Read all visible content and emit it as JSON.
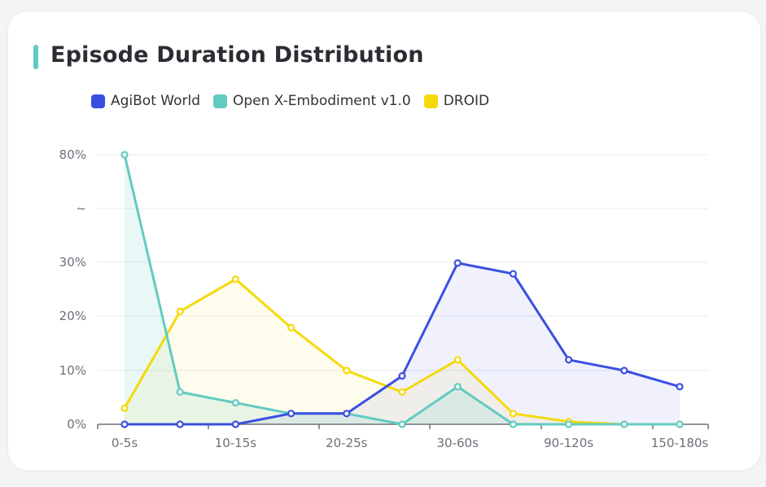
{
  "chart_data": {
    "type": "line",
    "title": "Episode Duration Distribution",
    "categories": [
      "0-5s",
      "",
      "10-15s",
      "",
      "20-25s",
      "",
      "30-60s",
      "",
      "90-120s",
      "",
      "150-180s"
    ],
    "y_tick_labels": [
      "0%",
      "10%",
      "20%",
      "30%",
      "~",
      "80%"
    ],
    "y_axis_note": "broken axis: 0–30% linear, then break (~) to 80%",
    "grid": true,
    "legend_position": "top",
    "series": [
      {
        "name": "AgiBot World",
        "color": "#3a4fe0",
        "values": [
          0,
          0,
          0,
          2,
          2,
          9,
          30,
          28,
          12,
          10,
          7
        ]
      },
      {
        "name": "Open X-Embodiment v1.0",
        "color": "#62cbbf",
        "values": [
          80,
          6,
          4,
          2,
          2,
          0,
          7,
          0,
          0,
          0,
          0
        ]
      },
      {
        "name": "DROID",
        "color": "#f5d90a",
        "values": [
          3,
          21,
          27,
          18,
          10,
          6,
          12,
          2,
          0.5,
          0,
          0
        ]
      }
    ]
  }
}
